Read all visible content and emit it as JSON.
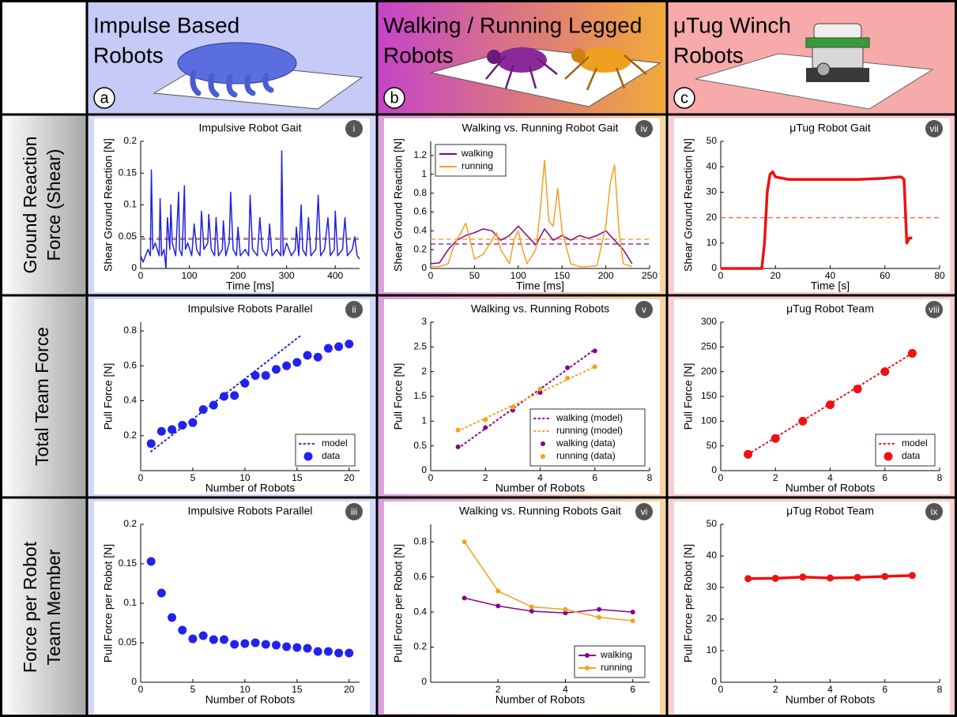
{
  "columns": [
    {
      "title_lines": [
        "Impulse Based",
        "Robots"
      ],
      "letter": "a"
    },
    {
      "title_lines": [
        "Walking / Running Legged",
        "Robots"
      ],
      "letter": "b"
    },
    {
      "title_lines": [
        "μTug Winch",
        "Robots"
      ],
      "letter": "c"
    }
  ],
  "rows": [
    {
      "lines": [
        "Ground Reaction",
        "Force (Shear)"
      ]
    },
    {
      "lines": [
        "Total Team Force"
      ]
    },
    {
      "lines": [
        "Force per Robot",
        "Team Member"
      ]
    }
  ],
  "chart_data": [
    {
      "type": "line",
      "title": "Impulsive Robot Gait",
      "badge": "i",
      "xlabel": "Time [ms]",
      "ylabel": "Shear Ground Reaction [N]",
      "xlim": [
        0,
        450
      ],
      "xticks": [
        0,
        100,
        200,
        300,
        400
      ],
      "ylim": [
        0,
        0.2
      ],
      "yticks": [
        0,
        0.05,
        0.1,
        0.15,
        0.2
      ],
      "reference_lines": [
        {
          "value": 0.046,
          "color": "#6a5cf0"
        },
        {
          "value": 0.048,
          "color": "#f5a623"
        }
      ],
      "series": [
        {
          "color": "#2222dd",
          "mode": "line",
          "x": [
            0,
            5,
            10,
            15,
            20,
            22,
            25,
            30,
            38,
            40,
            43,
            48,
            52,
            55,
            60,
            62,
            65,
            72,
            78,
            80,
            85,
            90,
            92,
            97,
            105,
            110,
            115,
            122,
            125,
            130,
            138,
            140,
            145,
            152,
            155,
            160,
            168,
            170,
            175,
            182,
            185,
            190,
            197,
            200,
            205,
            215,
            222,
            225,
            230,
            240,
            245,
            250,
            258,
            262,
            265,
            270,
            280,
            288,
            290,
            293,
            300,
            310,
            318,
            320,
            325,
            330,
            333,
            340,
            345,
            350,
            360,
            365,
            370,
            378,
            385,
            390,
            398,
            400,
            405,
            415,
            420,
            425,
            435,
            440,
            445,
            450
          ],
          "values": [
            0.02,
            0.01,
            0.02,
            0.03,
            0.02,
            0.155,
            0.03,
            0.04,
            0.02,
            0.11,
            0.02,
            0.03,
            0,
            0.08,
            0.03,
            0.1,
            0.04,
            0.02,
            0.12,
            0.03,
            0.02,
            0.13,
            0.03,
            0.04,
            0.02,
            0.07,
            0.03,
            0.02,
            0.09,
            0.03,
            0.04,
            0.085,
            0.03,
            0.02,
            0.08,
            0.02,
            0.03,
            0.075,
            0.02,
            0.04,
            0.12,
            0.03,
            0.02,
            0.065,
            0.02,
            0.03,
            0.02,
            0.115,
            0.03,
            0.02,
            0.08,
            0.03,
            0.02,
            0.03,
            0.07,
            0.02,
            0.03,
            0.02,
            0.185,
            0.02,
            0.04,
            0.02,
            0.03,
            0.065,
            0.02,
            0.1,
            0.03,
            0.02,
            0.08,
            0.02,
            0.03,
            0.115,
            0.02,
            0.03,
            0.08,
            0.02,
            0.03,
            0.09,
            0.02,
            0.03,
            0.08,
            0.02,
            0.03,
            0.05,
            0.02,
            0.015
          ]
        }
      ]
    },
    {
      "type": "line",
      "title": "Walking vs. Running Robot Gait",
      "badge": "iv",
      "xlabel": "Time [ms]",
      "ylabel": "Shear Ground Reaction [N]",
      "xlim": [
        0,
        250
      ],
      "xticks": [
        0,
        50,
        100,
        150,
        200,
        250
      ],
      "ylim": [
        0,
        1.35
      ],
      "yticks": [
        0,
        0.2,
        0.4,
        0.6,
        0.8,
        1,
        1.2
      ],
      "legend": "upper left",
      "reference_lines": [
        {
          "value": 0.26,
          "color": "#9a2aa0"
        },
        {
          "value": 0.31,
          "color": "#f5a623"
        }
      ],
      "series": [
        {
          "name": "walking",
          "color": "#880088",
          "mode": "line",
          "x": [
            0,
            10,
            20,
            30,
            40,
            50,
            60,
            70,
            80,
            90,
            100,
            110,
            120,
            130,
            140,
            150,
            160,
            170,
            180,
            190,
            200,
            210,
            220,
            230
          ],
          "values": [
            0.05,
            0.06,
            0.2,
            0.3,
            0.35,
            0.38,
            0.42,
            0.4,
            0.3,
            0.35,
            0.45,
            0.35,
            0.25,
            0.42,
            0.3,
            0.35,
            0.3,
            0.35,
            0.32,
            0.35,
            0.4,
            0.3,
            0.2,
            0.05
          ]
        },
        {
          "name": "running",
          "color": "#f5a020",
          "mode": "line",
          "x": [
            0,
            10,
            20,
            25,
            30,
            40,
            45,
            50,
            60,
            70,
            75,
            80,
            90,
            95,
            100,
            105,
            110,
            120,
            125,
            130,
            135,
            140,
            145,
            150,
            160,
            170,
            180,
            190,
            200,
            205,
            210,
            215,
            220,
            230
          ],
          "values": [
            0.02,
            0.02,
            0.05,
            0.2,
            0.3,
            0.48,
            0.3,
            0.1,
            0.15,
            0.3,
            0.38,
            0.2,
            0.05,
            0.3,
            0.4,
            0.2,
            0.05,
            0.2,
            0.6,
            1.15,
            0.5,
            0.45,
            0.85,
            0.4,
            0.05,
            0.02,
            0.02,
            0.03,
            0.45,
            0.9,
            1.1,
            0.4,
            0.05,
            0.02
          ]
        }
      ]
    },
    {
      "type": "line",
      "title": "μTug Robot Gait",
      "badge": "vii",
      "xlabel": "Time [s]",
      "ylabel": "Shear Ground Reaction [N]",
      "xlim": [
        0,
        80
      ],
      "xticks": [
        0,
        20,
        40,
        60,
        80
      ],
      "ylim": [
        0,
        50
      ],
      "yticks": [
        0,
        10,
        20,
        30,
        40,
        50
      ],
      "reference_lines": [
        {
          "value": 20,
          "color": "#f07060"
        }
      ],
      "series": [
        {
          "color": "#ee1111",
          "mode": "thick-line",
          "x": [
            0,
            15,
            16,
            17,
            18,
            19,
            20,
            25,
            30,
            40,
            50,
            60,
            65,
            66,
            67,
            68,
            69,
            70
          ],
          "values": [
            0,
            0,
            10,
            30,
            37,
            38,
            36,
            35,
            35,
            35,
            35,
            35.5,
            36,
            36,
            35,
            10,
            12,
            12
          ]
        }
      ]
    },
    {
      "type": "scatter",
      "title": "Impulsive Robots Parallel",
      "badge": "ii",
      "xlabel": "Number of Robots",
      "ylabel": "Pull Force [N]",
      "xlim": [
        0,
        21
      ],
      "xticks": [
        0,
        5,
        10,
        15,
        20
      ],
      "ylim": [
        0,
        0.85
      ],
      "yticks": [
        0.2,
        0.4,
        0.6,
        0.8
      ],
      "legend": "lower right",
      "series": [
        {
          "name": "model",
          "color": "#2222dd",
          "mode": "dotted",
          "x": [
            1,
            15.5
          ],
          "values": [
            0.11,
            0.78
          ]
        },
        {
          "name": "data",
          "color": "#2222ee",
          "mode": "markers",
          "marker": "large",
          "x": [
            1,
            2,
            3,
            4,
            5,
            6,
            7,
            8,
            9,
            10,
            11,
            12,
            13,
            14,
            15,
            16,
            17,
            18,
            19,
            20
          ],
          "values": [
            0.155,
            0.225,
            0.235,
            0.26,
            0.275,
            0.35,
            0.375,
            0.425,
            0.43,
            0.5,
            0.545,
            0.545,
            0.58,
            0.6,
            0.62,
            0.66,
            0.65,
            0.7,
            0.71,
            0.725
          ]
        }
      ]
    },
    {
      "type": "scatter",
      "title": "Walking vs. Running Robots",
      "badge": "v",
      "xlabel": "Number of Robots",
      "ylabel": "Pull Force [N]",
      "xlim": [
        0,
        8
      ],
      "xticks": [
        0,
        2,
        4,
        6,
        8
      ],
      "ylim": [
        0,
        3
      ],
      "yticks": [
        0,
        0.5,
        1,
        1.5,
        2,
        2.5,
        3
      ],
      "legend": "lower right",
      "series": [
        {
          "name": "walking (model)",
          "color": "#880088",
          "mode": "dotted",
          "x": [
            1,
            6
          ],
          "values": [
            0.45,
            2.45
          ]
        },
        {
          "name": "running (model)",
          "color": "#f5a020",
          "mode": "dotted",
          "x": [
            1,
            6
          ],
          "values": [
            0.8,
            2.1
          ]
        },
        {
          "name": "walking (data)",
          "color": "#880088",
          "mode": "markers",
          "marker": "small",
          "x": [
            1,
            2,
            3,
            4,
            5,
            6
          ],
          "values": [
            0.48,
            0.87,
            1.22,
            1.58,
            2.08,
            2.42
          ]
        },
        {
          "name": "running (data)",
          "color": "#f5a020",
          "mode": "markers",
          "marker": "small",
          "x": [
            1,
            2,
            3,
            4,
            5,
            6
          ],
          "values": [
            0.82,
            1.03,
            1.28,
            1.65,
            1.87,
            2.1
          ]
        }
      ]
    },
    {
      "type": "scatter",
      "title": "μTug Robot Team",
      "badge": "viii",
      "xlabel": "Number of Robots",
      "ylabel": "Pull Force [N]",
      "xlim": [
        0,
        8
      ],
      "xticks": [
        0,
        2,
        4,
        6,
        8
      ],
      "ylim": [
        0,
        300
      ],
      "yticks": [
        0,
        50,
        100,
        150,
        200,
        250,
        300
      ],
      "legend": "lower right",
      "series": [
        {
          "name": "model",
          "color": "#ee1111",
          "mode": "dotted",
          "x": [
            1,
            7
          ],
          "values": [
            33,
            237
          ]
        },
        {
          "name": "data",
          "color": "#ee1111",
          "mode": "markers",
          "marker": "large",
          "x": [
            1,
            2,
            3,
            4,
            5,
            6,
            7
          ],
          "values": [
            33,
            65,
            100,
            133,
            165,
            200,
            237
          ]
        }
      ]
    },
    {
      "type": "scatter",
      "title": "Impulsive Robots Parallel",
      "badge": "iii",
      "xlabel": "Number of Robots",
      "ylabel": "Pull Force per Robot [N]",
      "xlim": [
        0,
        21
      ],
      "xticks": [
        0,
        5,
        10,
        15,
        20
      ],
      "ylim": [
        0,
        0.2
      ],
      "yticks": [
        0,
        0.05,
        0.1,
        0.15,
        0.2
      ],
      "series": [
        {
          "color": "#2222ee",
          "mode": "markers",
          "marker": "large",
          "x": [
            1,
            2,
            3,
            4,
            5,
            6,
            7,
            8,
            9,
            10,
            11,
            12,
            13,
            14,
            15,
            16,
            17,
            18,
            19,
            20
          ],
          "values": [
            0.153,
            0.113,
            0.082,
            0.066,
            0.055,
            0.059,
            0.054,
            0.054,
            0.048,
            0.049,
            0.05,
            0.048,
            0.047,
            0.045,
            0.044,
            0.043,
            0.039,
            0.039,
            0.037,
            0.037
          ]
        }
      ]
    },
    {
      "type": "line",
      "title": "Walking vs. Running Robots Gait",
      "badge": "vi",
      "xlabel": "Number of Robots",
      "ylabel": "Pull Force per Robot [N]",
      "xlim": [
        0,
        6.5
      ],
      "xticks": [
        2,
        4,
        6
      ],
      "ylim": [
        0,
        0.9
      ],
      "yticks": [
        0,
        0.2,
        0.4,
        0.6,
        0.8
      ],
      "legend": "lower right",
      "series": [
        {
          "name": "walking",
          "color": "#880088",
          "mode": "line+markers",
          "marker": "small",
          "x": [
            1,
            2,
            3,
            4,
            5,
            6
          ],
          "values": [
            0.48,
            0.435,
            0.405,
            0.395,
            0.415,
            0.4
          ]
        },
        {
          "name": "running",
          "color": "#f5a020",
          "mode": "line+markers",
          "marker": "small",
          "x": [
            1,
            2,
            3,
            4,
            5,
            6
          ],
          "values": [
            0.8,
            0.52,
            0.43,
            0.415,
            0.37,
            0.35
          ]
        }
      ]
    },
    {
      "type": "line",
      "title": "μTug Robot Team",
      "badge": "ix",
      "xlabel": "Number of Robots",
      "ylabel": "Pull Force per Robot [N]",
      "xlim": [
        0,
        8
      ],
      "xticks": [
        0,
        2,
        4,
        6,
        8
      ],
      "ylim": [
        0,
        50
      ],
      "yticks": [
        0,
        10,
        20,
        30,
        40,
        50
      ],
      "series": [
        {
          "color": "#ee1111",
          "mode": "thick-line+markers",
          "marker": "medium",
          "x": [
            1,
            2,
            3,
            4,
            5,
            6,
            7
          ],
          "values": [
            32.8,
            32.9,
            33.3,
            33.0,
            33.2,
            33.5,
            33.8
          ]
        }
      ]
    }
  ]
}
